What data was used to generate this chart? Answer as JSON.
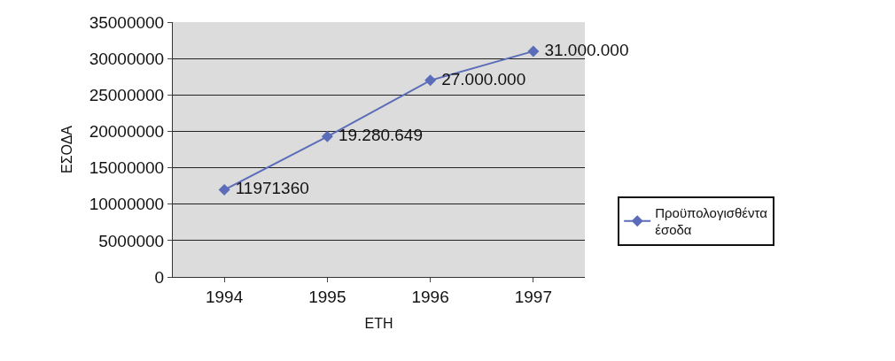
{
  "chart_data": {
    "type": "line",
    "xlabel": "ΕΤΗ",
    "ylabel": "ΕΣΟΔΑ",
    "categories": [
      "1994",
      "1995",
      "1996",
      "1997"
    ],
    "series": [
      {
        "name": "Προϋπολογισθέντα έσοδα",
        "color": "#5b6cb8",
        "values": [
          11971360,
          19280649,
          27000000,
          31000000
        ],
        "value_labels": [
          "11971360",
          "19.280.649",
          "27.000.000",
          "31.000.000"
        ]
      }
    ],
    "ylim": [
      0,
      35000000
    ],
    "yticks": [
      0,
      5000000,
      10000000,
      15000000,
      20000000,
      25000000,
      30000000,
      35000000
    ],
    "grid": "y",
    "legend": "right",
    "marker": "diamond",
    "line_style": "solid"
  }
}
